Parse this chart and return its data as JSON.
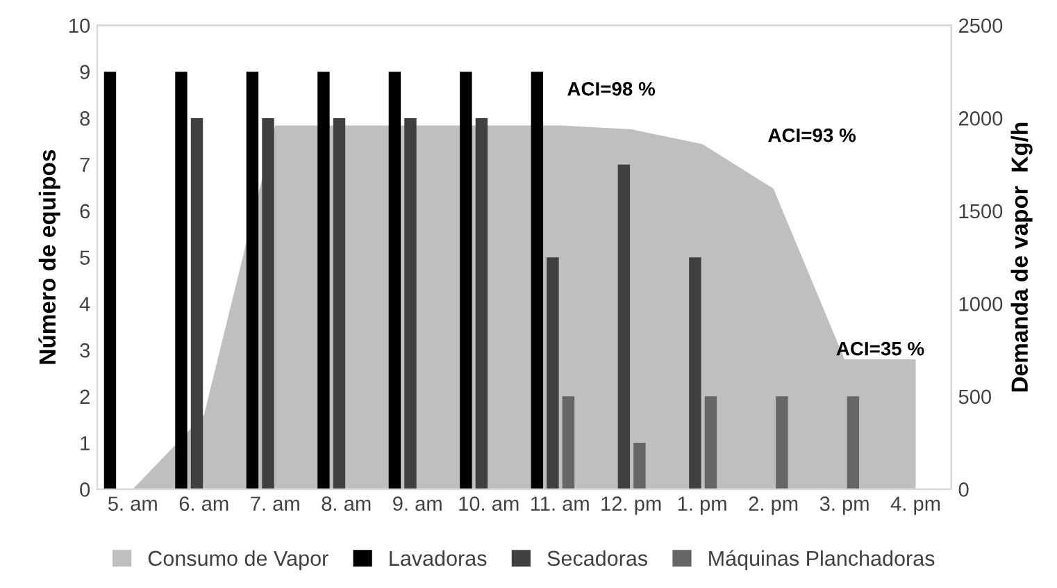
{
  "chart_data": {
    "type": "bar",
    "ylabel": "Número de equipos",
    "y2label": "Demanda de vapor  Kg/h",
    "categories": [
      "5. am",
      "6. am",
      "7. am",
      "8. am",
      "9. am",
      "10. am",
      "11. am",
      "12. pm",
      "1. pm",
      "2. pm",
      "3. pm",
      "4. pm"
    ],
    "series": [
      {
        "name": "Consumo de Vapor",
        "type": "area",
        "axis": "y2",
        "color": "#bfbfbf",
        "values": [
          0,
          400,
          1960,
          1960,
          1960,
          1960,
          1960,
          1940,
          1860,
          1620,
          700,
          700
        ]
      },
      {
        "name": "Lavadoras",
        "color": "#000000",
        "values": [
          9,
          9,
          9,
          9,
          9,
          9,
          9,
          null,
          null,
          null,
          null,
          null
        ]
      },
      {
        "name": "Secadoras",
        "color": "#404040",
        "values": [
          null,
          8,
          8,
          8,
          8,
          8,
          5,
          7,
          5,
          null,
          null,
          null
        ]
      },
      {
        "name": "Máquinas Planchadoras",
        "color": "#666666",
        "values": [
          null,
          null,
          null,
          null,
          null,
          null,
          2,
          1,
          2,
          2,
          2,
          null
        ]
      }
    ],
    "ylim": [
      0,
      10
    ],
    "yticks": [
      0,
      1,
      2,
      3,
      4,
      5,
      6,
      7,
      8,
      9,
      10
    ],
    "y2lim": [
      0,
      2500
    ],
    "y2ticks": [
      0,
      500,
      1000,
      1500,
      2000,
      2500
    ],
    "annotations": [
      "ACI=98 %",
      "ACI=93 %",
      "ACI=35 %"
    ],
    "grid": false,
    "legend": "bottom"
  }
}
